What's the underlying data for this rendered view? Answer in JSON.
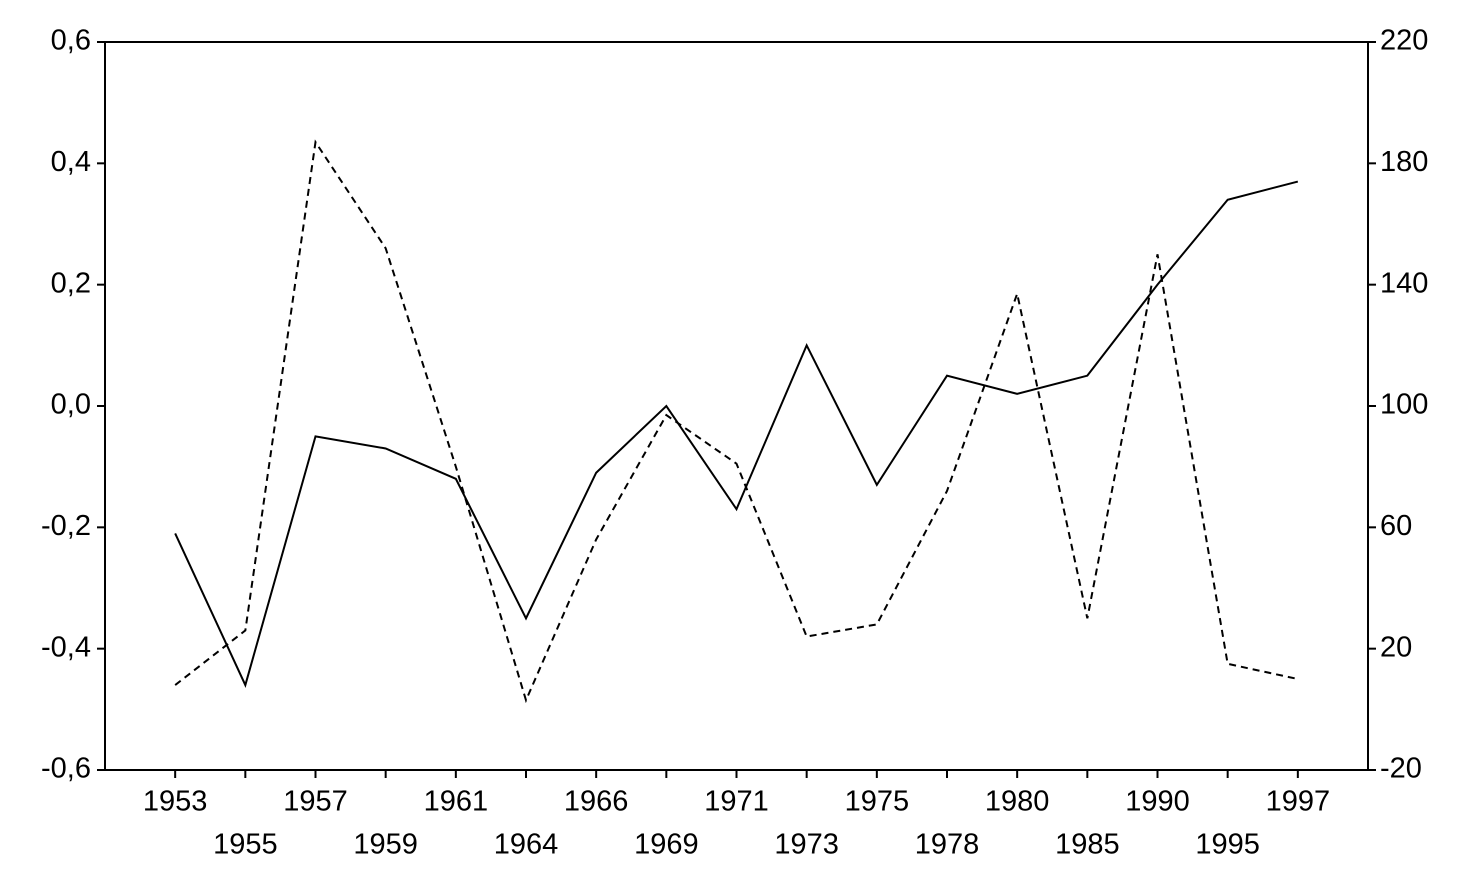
{
  "chart_data": {
    "type": "line",
    "categories": [
      "1953",
      "1955",
      "1957",
      "1959",
      "1961",
      "1964",
      "1966",
      "1969",
      "1971",
      "1973",
      "1975",
      "1978",
      "1980",
      "1985",
      "1990",
      "1995",
      "1997"
    ],
    "series": [
      {
        "color": "#000000",
        "dashed": false,
        "values": [
          -0.21,
          -0.46,
          -0.05,
          -0.07,
          -0.12,
          -0.35,
          -0.11,
          0.0,
          -0.17,
          0.1,
          -0.13,
          0.05,
          0.02,
          0.05,
          0.2,
          0.34,
          0.37
        ]
      },
      {
        "color": "#000000",
        "dashed": true,
        "axis": "y2",
        "values": [
          8,
          26,
          187,
          152,
          80,
          3,
          56,
          97,
          81,
          24,
          28,
          72,
          137,
          30,
          150,
          15,
          10
        ]
      }
    ],
    "ylim": [
      -0.6,
      0.6
    ],
    "yticks": [
      {
        "value": -0.6,
        "label": "-0,6"
      },
      {
        "value": -0.4,
        "label": "-0,4"
      },
      {
        "value": -0.2,
        "label": "-0,2"
      },
      {
        "value": 0,
        "label": "0,0"
      },
      {
        "value": 0.2,
        "label": "0,2"
      },
      {
        "value": 0.4,
        "label": "0,4"
      },
      {
        "value": 0.6,
        "label": "0,6"
      }
    ],
    "y2lim": [
      -20,
      220
    ],
    "y2ticks": [
      -20,
      20,
      60,
      100,
      140,
      180,
      220
    ],
    "grid": false
  }
}
